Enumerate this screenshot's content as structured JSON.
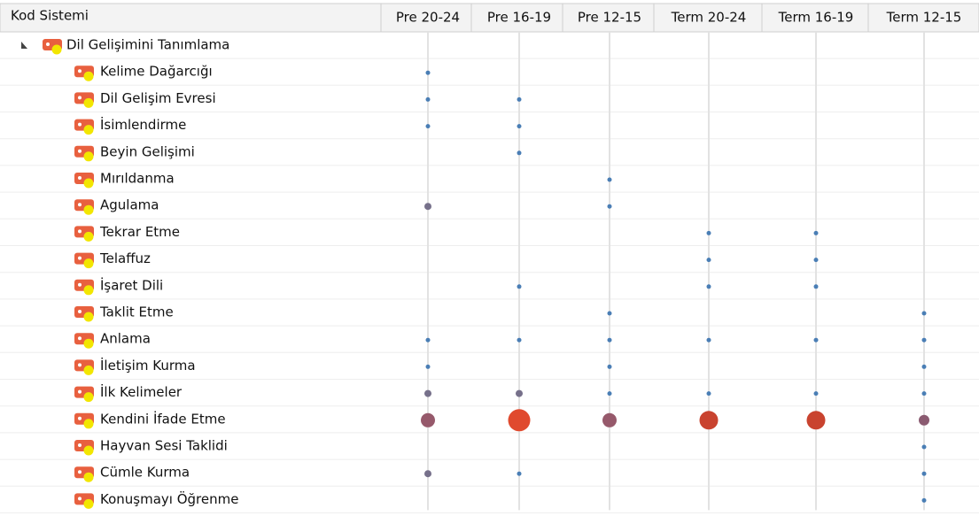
{
  "header": {
    "first": "Kod Sistemi",
    "columns": [
      "Pre 20-24",
      "Pre 16-19",
      "Pre 12-15",
      "Term 20-24",
      "Term 16-19",
      "Term 12-15"
    ]
  },
  "root": {
    "label": "Dil Gelişimini Tanımlama"
  },
  "rows": [
    {
      "label": "Kelime Dağarcığı",
      "cells": [
        1,
        null,
        null,
        null,
        null,
        null
      ]
    },
    {
      "label": "Dil Gelişim Evresi",
      "cells": [
        1,
        1,
        null,
        null,
        null,
        null
      ]
    },
    {
      "label": "İsimlendirme",
      "cells": [
        1,
        1,
        null,
        null,
        null,
        null
      ]
    },
    {
      "label": "Beyin Gelişimi",
      "cells": [
        null,
        1,
        null,
        null,
        null,
        null
      ]
    },
    {
      "label": "Mırıldanma",
      "cells": [
        null,
        null,
        1,
        null,
        null,
        null
      ]
    },
    {
      "label": "Agulama",
      "cells": [
        2,
        null,
        1,
        null,
        null,
        null
      ]
    },
    {
      "label": "Tekrar Etme",
      "cells": [
        null,
        null,
        null,
        1,
        1,
        null
      ]
    },
    {
      "label": "Telaffuz",
      "cells": [
        null,
        null,
        null,
        1,
        1,
        null
      ]
    },
    {
      "label": "İşaret Dili",
      "cells": [
        null,
        1,
        null,
        1,
        1,
        null
      ]
    },
    {
      "label": "Taklit Etme",
      "cells": [
        null,
        null,
        1,
        null,
        null,
        1
      ]
    },
    {
      "label": "Anlama",
      "cells": [
        1,
        1,
        1,
        1,
        1,
        1
      ]
    },
    {
      "label": "İletişim Kurma",
      "cells": [
        1,
        null,
        1,
        null,
        null,
        1
      ]
    },
    {
      "label": "İlk Kelimeler",
      "cells": [
        2,
        2,
        1,
        1,
        1,
        1
      ]
    },
    {
      "label": "Kendini İfade Etme",
      "cells": [
        4,
        6,
        4,
        5,
        5,
        3
      ]
    },
    {
      "label": "Hayvan Sesi Taklidi",
      "cells": [
        null,
        null,
        null,
        null,
        null,
        1
      ]
    },
    {
      "label": "Cümle Kurma",
      "cells": [
        2,
        1,
        null,
        null,
        null,
        1
      ]
    },
    {
      "label": "Konuşmayı Öğrenme",
      "cells": [
        null,
        null,
        null,
        null,
        null,
        1
      ]
    }
  ]
}
